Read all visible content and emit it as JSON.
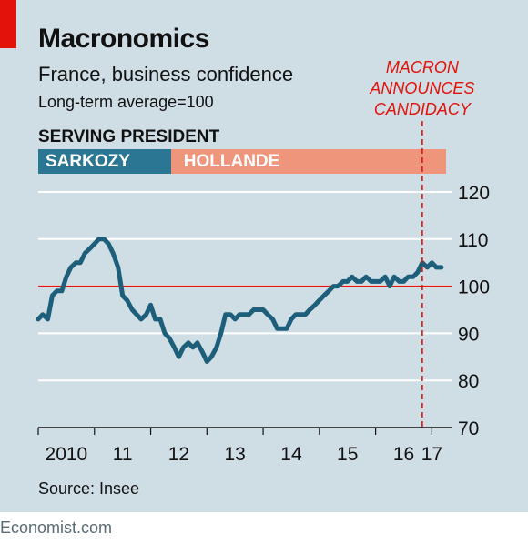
{
  "header": {
    "title": "Macronomics",
    "subtitle": "France, business confidence",
    "note": "Long-term average=100"
  },
  "presidents": {
    "heading": "SERVING PRESIDENT",
    "segments": [
      {
        "label": "SARKOZY",
        "start": 2010.0,
        "end": 2012.36,
        "color": "#2b7693"
      },
      {
        "label": "HOLLANDE",
        "start": 2012.36,
        "end": 2017.25,
        "color": "#ee957b"
      }
    ]
  },
  "annotation": {
    "lines": [
      "MACRON",
      "ANNOUNCES",
      "CANDIDACY"
    ],
    "x": 2016.83,
    "color": "#e3120b"
  },
  "source": "Source: Insee",
  "footer": "Economist.com",
  "chart_data": {
    "type": "line",
    "ylim": [
      70,
      120
    ],
    "yticks": [
      70,
      80,
      90,
      100,
      110,
      120
    ],
    "xlim": [
      2010.0,
      2017.35
    ],
    "xticks": [
      {
        "label": "2010",
        "x": 2010.5
      },
      {
        "label": "11",
        "x": 2011.5
      },
      {
        "label": "12",
        "x": 2012.5
      },
      {
        "label": "13",
        "x": 2013.5
      },
      {
        "label": "14",
        "x": 2014.5
      },
      {
        "label": "15",
        "x": 2015.5
      },
      {
        "label": "16",
        "x": 2016.5
      },
      {
        "label": "17",
        "x": 2017.0
      }
    ],
    "reference_line": {
      "y": 100,
      "color": "#e3120b"
    },
    "grid": true,
    "series": [
      {
        "color": "#1d5f7a",
        "points": [
          [
            2010.0,
            93
          ],
          [
            2010.08,
            94
          ],
          [
            2010.17,
            93
          ],
          [
            2010.25,
            98
          ],
          [
            2010.33,
            99
          ],
          [
            2010.42,
            99
          ],
          [
            2010.5,
            102
          ],
          [
            2010.58,
            104
          ],
          [
            2010.67,
            105
          ],
          [
            2010.75,
            105
          ],
          [
            2010.83,
            107
          ],
          [
            2010.92,
            108
          ],
          [
            2011.0,
            109
          ],
          [
            2011.08,
            110
          ],
          [
            2011.17,
            110
          ],
          [
            2011.25,
            109
          ],
          [
            2011.33,
            107
          ],
          [
            2011.42,
            104
          ],
          [
            2011.5,
            98
          ],
          [
            2011.58,
            97
          ],
          [
            2011.67,
            95
          ],
          [
            2011.75,
            94
          ],
          [
            2011.83,
            93
          ],
          [
            2011.92,
            94
          ],
          [
            2012.0,
            96
          ],
          [
            2012.08,
            93
          ],
          [
            2012.17,
            93
          ],
          [
            2012.25,
            90
          ],
          [
            2012.33,
            89
          ],
          [
            2012.42,
            87
          ],
          [
            2012.5,
            85
          ],
          [
            2012.58,
            87
          ],
          [
            2012.67,
            88
          ],
          [
            2012.75,
            87
          ],
          [
            2012.83,
            88
          ],
          [
            2012.92,
            86
          ],
          [
            2013.0,
            84
          ],
          [
            2013.08,
            85
          ],
          [
            2013.17,
            87
          ],
          [
            2013.25,
            90
          ],
          [
            2013.33,
            94
          ],
          [
            2013.42,
            94
          ],
          [
            2013.5,
            93
          ],
          [
            2013.58,
            94
          ],
          [
            2013.67,
            94
          ],
          [
            2013.75,
            94
          ],
          [
            2013.83,
            95
          ],
          [
            2013.92,
            95
          ],
          [
            2014.0,
            95
          ],
          [
            2014.08,
            94
          ],
          [
            2014.17,
            93
          ],
          [
            2014.25,
            91
          ],
          [
            2014.33,
            91
          ],
          [
            2014.42,
            91
          ],
          [
            2014.5,
            93
          ],
          [
            2014.58,
            94
          ],
          [
            2014.67,
            94
          ],
          [
            2014.75,
            94
          ],
          [
            2014.83,
            95
          ],
          [
            2014.92,
            96
          ],
          [
            2015.0,
            97
          ],
          [
            2015.08,
            98
          ],
          [
            2015.17,
            99
          ],
          [
            2015.25,
            100
          ],
          [
            2015.33,
            100
          ],
          [
            2015.42,
            101
          ],
          [
            2015.5,
            101
          ],
          [
            2015.58,
            102
          ],
          [
            2015.67,
            101
          ],
          [
            2015.75,
            101
          ],
          [
            2015.83,
            102
          ],
          [
            2015.92,
            101
          ],
          [
            2016.0,
            101
          ],
          [
            2016.08,
            101
          ],
          [
            2016.17,
            102
          ],
          [
            2016.25,
            100
          ],
          [
            2016.33,
            102
          ],
          [
            2016.42,
            101
          ],
          [
            2016.5,
            101
          ],
          [
            2016.58,
            102
          ],
          [
            2016.67,
            102
          ],
          [
            2016.75,
            103
          ],
          [
            2016.83,
            105
          ],
          [
            2016.92,
            104
          ],
          [
            2017.0,
            105
          ],
          [
            2017.08,
            104
          ],
          [
            2017.17,
            104
          ]
        ]
      }
    ]
  }
}
